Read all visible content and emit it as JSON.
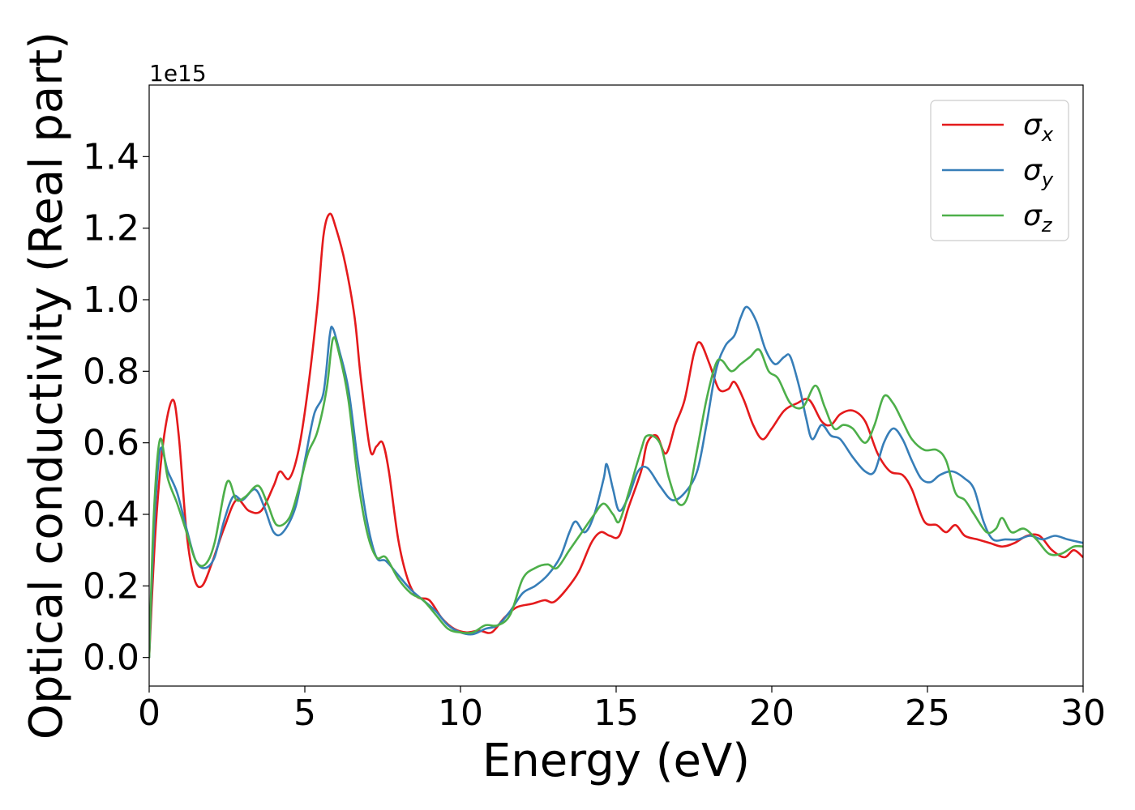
{
  "chart_data": {
    "type": "line",
    "xlabel": "Energy (eV)",
    "ylabel": "Optical conductivity (Real part)",
    "y_offset_text": "1e15",
    "xlim": [
      0,
      30
    ],
    "ylim": [
      -0.08,
      1.6
    ],
    "xticks": [
      0,
      5,
      10,
      15,
      20,
      25,
      30
    ],
    "yticks": [
      0.0,
      0.2,
      0.4,
      0.6,
      0.8,
      1.0,
      1.2,
      1.4
    ],
    "xtick_labels": [
      "0",
      "5",
      "10",
      "15",
      "20",
      "25",
      "30"
    ],
    "ytick_labels": [
      "0.0",
      "0.2",
      "0.4",
      "0.6",
      "0.8",
      "1.0",
      "1.2",
      "1.4"
    ],
    "grid": false,
    "legend_position": "top-right",
    "series": [
      {
        "name": "σx",
        "base": "σ",
        "sub": "x",
        "color": "#e41a1c",
        "points": [
          [
            0,
            0.0
          ],
          [
            0.2,
            0.35
          ],
          [
            0.45,
            0.6
          ],
          [
            0.75,
            0.72
          ],
          [
            0.95,
            0.62
          ],
          [
            1.2,
            0.35
          ],
          [
            1.45,
            0.22
          ],
          [
            1.7,
            0.2
          ],
          [
            2.0,
            0.26
          ],
          [
            2.4,
            0.36
          ],
          [
            2.8,
            0.44
          ],
          [
            3.2,
            0.41
          ],
          [
            3.6,
            0.41
          ],
          [
            4.0,
            0.48
          ],
          [
            4.2,
            0.52
          ],
          [
            4.5,
            0.5
          ],
          [
            4.8,
            0.58
          ],
          [
            5.1,
            0.75
          ],
          [
            5.4,
            0.98
          ],
          [
            5.6,
            1.18
          ],
          [
            5.8,
            1.24
          ],
          [
            6.0,
            1.2
          ],
          [
            6.3,
            1.1
          ],
          [
            6.6,
            0.95
          ],
          [
            6.8,
            0.78
          ],
          [
            7.1,
            0.58
          ],
          [
            7.3,
            0.59
          ],
          [
            7.5,
            0.6
          ],
          [
            7.7,
            0.52
          ],
          [
            8.0,
            0.33
          ],
          [
            8.3,
            0.22
          ],
          [
            8.6,
            0.17
          ],
          [
            9.0,
            0.16
          ],
          [
            9.4,
            0.11
          ],
          [
            9.8,
            0.08
          ],
          [
            10.2,
            0.07
          ],
          [
            10.6,
            0.075
          ],
          [
            11.0,
            0.07
          ],
          [
            11.4,
            0.11
          ],
          [
            11.8,
            0.14
          ],
          [
            12.3,
            0.15
          ],
          [
            12.7,
            0.16
          ],
          [
            13.0,
            0.155
          ],
          [
            13.4,
            0.19
          ],
          [
            13.8,
            0.24
          ],
          [
            14.2,
            0.32
          ],
          [
            14.5,
            0.35
          ],
          [
            14.8,
            0.34
          ],
          [
            15.1,
            0.34
          ],
          [
            15.4,
            0.42
          ],
          [
            15.8,
            0.52
          ],
          [
            16.0,
            0.6
          ],
          [
            16.3,
            0.62
          ],
          [
            16.6,
            0.57
          ],
          [
            16.9,
            0.65
          ],
          [
            17.2,
            0.72
          ],
          [
            17.5,
            0.85
          ],
          [
            17.7,
            0.88
          ],
          [
            18.0,
            0.82
          ],
          [
            18.3,
            0.75
          ],
          [
            18.6,
            0.75
          ],
          [
            18.8,
            0.77
          ],
          [
            19.1,
            0.72
          ],
          [
            19.4,
            0.65
          ],
          [
            19.7,
            0.61
          ],
          [
            20.0,
            0.64
          ],
          [
            20.4,
            0.69
          ],
          [
            20.8,
            0.71
          ],
          [
            21.2,
            0.72
          ],
          [
            21.6,
            0.66
          ],
          [
            21.9,
            0.65
          ],
          [
            22.2,
            0.68
          ],
          [
            22.6,
            0.69
          ],
          [
            23.0,
            0.66
          ],
          [
            23.4,
            0.57
          ],
          [
            23.8,
            0.52
          ],
          [
            24.2,
            0.51
          ],
          [
            24.5,
            0.47
          ],
          [
            24.9,
            0.38
          ],
          [
            25.3,
            0.37
          ],
          [
            25.6,
            0.35
          ],
          [
            25.9,
            0.37
          ],
          [
            26.2,
            0.34
          ],
          [
            26.6,
            0.33
          ],
          [
            27.0,
            0.32
          ],
          [
            27.4,
            0.31
          ],
          [
            27.8,
            0.32
          ],
          [
            28.2,
            0.34
          ],
          [
            28.6,
            0.34
          ],
          [
            29.0,
            0.3
          ],
          [
            29.4,
            0.28
          ],
          [
            29.7,
            0.3
          ],
          [
            30.0,
            0.28
          ]
        ]
      },
      {
        "name": "σy",
        "base": "σ",
        "sub": "y",
        "color": "#377eb8",
        "points": [
          [
            0,
            0.0
          ],
          [
            0.15,
            0.35
          ],
          [
            0.35,
            0.58
          ],
          [
            0.6,
            0.52
          ],
          [
            0.9,
            0.46
          ],
          [
            1.2,
            0.36
          ],
          [
            1.5,
            0.27
          ],
          [
            1.8,
            0.25
          ],
          [
            2.1,
            0.28
          ],
          [
            2.4,
            0.38
          ],
          [
            2.7,
            0.45
          ],
          [
            3.0,
            0.44
          ],
          [
            3.4,
            0.47
          ],
          [
            3.7,
            0.42
          ],
          [
            4.0,
            0.35
          ],
          [
            4.3,
            0.35
          ],
          [
            4.7,
            0.42
          ],
          [
            5.0,
            0.55
          ],
          [
            5.3,
            0.68
          ],
          [
            5.6,
            0.74
          ],
          [
            5.8,
            0.9
          ],
          [
            5.9,
            0.92
          ],
          [
            6.1,
            0.86
          ],
          [
            6.4,
            0.75
          ],
          [
            6.7,
            0.55
          ],
          [
            7.0,
            0.38
          ],
          [
            7.3,
            0.28
          ],
          [
            7.6,
            0.27
          ],
          [
            8.0,
            0.23
          ],
          [
            8.4,
            0.19
          ],
          [
            8.8,
            0.16
          ],
          [
            9.2,
            0.13
          ],
          [
            9.6,
            0.09
          ],
          [
            10.0,
            0.07
          ],
          [
            10.4,
            0.065
          ],
          [
            10.8,
            0.08
          ],
          [
            11.2,
            0.09
          ],
          [
            11.6,
            0.13
          ],
          [
            12.0,
            0.18
          ],
          [
            12.4,
            0.2
          ],
          [
            12.8,
            0.23
          ],
          [
            13.2,
            0.28
          ],
          [
            13.5,
            0.35
          ],
          [
            13.7,
            0.38
          ],
          [
            14.0,
            0.35
          ],
          [
            14.3,
            0.4
          ],
          [
            14.6,
            0.5
          ],
          [
            14.7,
            0.54
          ],
          [
            14.9,
            0.47
          ],
          [
            15.1,
            0.41
          ],
          [
            15.4,
            0.45
          ],
          [
            15.7,
            0.52
          ],
          [
            16.0,
            0.53
          ],
          [
            16.4,
            0.48
          ],
          [
            16.8,
            0.44
          ],
          [
            17.2,
            0.46
          ],
          [
            17.6,
            0.52
          ],
          [
            17.9,
            0.65
          ],
          [
            18.2,
            0.8
          ],
          [
            18.5,
            0.87
          ],
          [
            18.8,
            0.9
          ],
          [
            19.0,
            0.95
          ],
          [
            19.2,
            0.98
          ],
          [
            19.5,
            0.94
          ],
          [
            19.8,
            0.86
          ],
          [
            20.1,
            0.82
          ],
          [
            20.4,
            0.84
          ],
          [
            20.6,
            0.84
          ],
          [
            20.9,
            0.75
          ],
          [
            21.1,
            0.67
          ],
          [
            21.3,
            0.61
          ],
          [
            21.6,
            0.65
          ],
          [
            21.9,
            0.62
          ],
          [
            22.2,
            0.61
          ],
          [
            22.6,
            0.56
          ],
          [
            23.0,
            0.52
          ],
          [
            23.3,
            0.52
          ],
          [
            23.6,
            0.6
          ],
          [
            23.9,
            0.64
          ],
          [
            24.2,
            0.61
          ],
          [
            24.5,
            0.55
          ],
          [
            24.8,
            0.5
          ],
          [
            25.1,
            0.49
          ],
          [
            25.4,
            0.51
          ],
          [
            25.8,
            0.52
          ],
          [
            26.2,
            0.5
          ],
          [
            26.5,
            0.47
          ],
          [
            26.8,
            0.38
          ],
          [
            27.1,
            0.33
          ],
          [
            27.5,
            0.33
          ],
          [
            27.9,
            0.33
          ],
          [
            28.3,
            0.34
          ],
          [
            28.7,
            0.33
          ],
          [
            29.1,
            0.34
          ],
          [
            29.5,
            0.33
          ],
          [
            30.0,
            0.32
          ]
        ]
      },
      {
        "name": "σz",
        "base": "σ",
        "sub": "z",
        "color": "#4daf4a",
        "points": [
          [
            0,
            0.0
          ],
          [
            0.15,
            0.4
          ],
          [
            0.35,
            0.61
          ],
          [
            0.6,
            0.5
          ],
          [
            0.9,
            0.43
          ],
          [
            1.2,
            0.35
          ],
          [
            1.5,
            0.27
          ],
          [
            1.8,
            0.26
          ],
          [
            2.1,
            0.32
          ],
          [
            2.5,
            0.49
          ],
          [
            2.8,
            0.44
          ],
          [
            3.1,
            0.45
          ],
          [
            3.5,
            0.48
          ],
          [
            3.8,
            0.43
          ],
          [
            4.1,
            0.37
          ],
          [
            4.5,
            0.39
          ],
          [
            4.8,
            0.47
          ],
          [
            5.1,
            0.57
          ],
          [
            5.4,
            0.63
          ],
          [
            5.7,
            0.75
          ],
          [
            5.9,
            0.89
          ],
          [
            6.1,
            0.85
          ],
          [
            6.4,
            0.72
          ],
          [
            6.7,
            0.5
          ],
          [
            7.0,
            0.35
          ],
          [
            7.3,
            0.28
          ],
          [
            7.6,
            0.28
          ],
          [
            8.0,
            0.22
          ],
          [
            8.4,
            0.18
          ],
          [
            8.8,
            0.16
          ],
          [
            9.2,
            0.12
          ],
          [
            9.6,
            0.08
          ],
          [
            10.0,
            0.07
          ],
          [
            10.4,
            0.07
          ],
          [
            10.8,
            0.09
          ],
          [
            11.2,
            0.09
          ],
          [
            11.6,
            0.12
          ],
          [
            12.0,
            0.22
          ],
          [
            12.4,
            0.25
          ],
          [
            12.8,
            0.26
          ],
          [
            13.1,
            0.25
          ],
          [
            13.5,
            0.3
          ],
          [
            13.9,
            0.35
          ],
          [
            14.3,
            0.4
          ],
          [
            14.6,
            0.43
          ],
          [
            14.9,
            0.4
          ],
          [
            15.1,
            0.38
          ],
          [
            15.4,
            0.46
          ],
          [
            15.8,
            0.58
          ],
          [
            16.0,
            0.62
          ],
          [
            16.4,
            0.6
          ],
          [
            16.7,
            0.5
          ],
          [
            17.0,
            0.43
          ],
          [
            17.3,
            0.45
          ],
          [
            17.6,
            0.58
          ],
          [
            17.9,
            0.72
          ],
          [
            18.2,
            0.82
          ],
          [
            18.4,
            0.83
          ],
          [
            18.7,
            0.8
          ],
          [
            19.0,
            0.82
          ],
          [
            19.3,
            0.84
          ],
          [
            19.6,
            0.86
          ],
          [
            19.9,
            0.8
          ],
          [
            20.2,
            0.78
          ],
          [
            20.6,
            0.71
          ],
          [
            21.0,
            0.7
          ],
          [
            21.4,
            0.76
          ],
          [
            21.7,
            0.7
          ],
          [
            22.0,
            0.64
          ],
          [
            22.3,
            0.65
          ],
          [
            22.6,
            0.64
          ],
          [
            23.0,
            0.6
          ],
          [
            23.3,
            0.65
          ],
          [
            23.6,
            0.73
          ],
          [
            23.9,
            0.71
          ],
          [
            24.2,
            0.66
          ],
          [
            24.5,
            0.61
          ],
          [
            24.9,
            0.58
          ],
          [
            25.3,
            0.58
          ],
          [
            25.6,
            0.55
          ],
          [
            25.9,
            0.46
          ],
          [
            26.2,
            0.44
          ],
          [
            26.5,
            0.4
          ],
          [
            26.9,
            0.35
          ],
          [
            27.2,
            0.36
          ],
          [
            27.4,
            0.39
          ],
          [
            27.7,
            0.35
          ],
          [
            28.1,
            0.36
          ],
          [
            28.5,
            0.33
          ],
          [
            28.9,
            0.29
          ],
          [
            29.3,
            0.29
          ],
          [
            29.7,
            0.31
          ],
          [
            30.0,
            0.31
          ]
        ]
      }
    ]
  }
}
